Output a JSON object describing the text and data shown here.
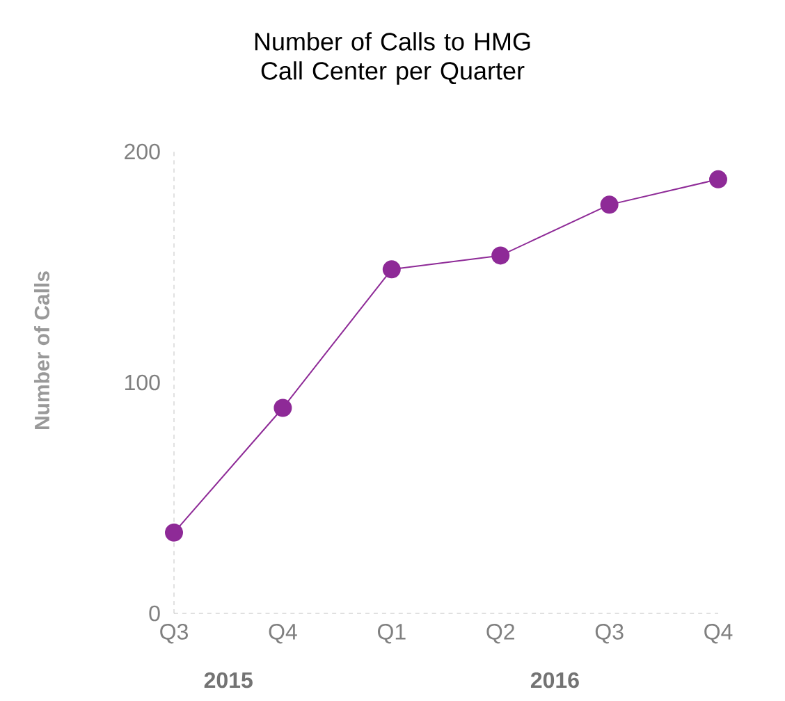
{
  "chart_data": {
    "type": "line",
    "title": "Number of Calls to HMG Call Center per Quarter",
    "ylabel": "Number of Calls",
    "categories": [
      "Q3",
      "Q4",
      "Q1",
      "Q2",
      "Q3",
      "Q4"
    ],
    "series": [
      {
        "color": "#8e2a97",
        "values": [
          35,
          89,
          149,
          155,
          177,
          188
        ]
      }
    ],
    "ylim": [
      0,
      200
    ],
    "yticks": [
      0,
      100,
      200
    ],
    "grid": false,
    "marker": "circle",
    "line_style": "solid",
    "annotations": [
      "2015",
      "2016"
    ]
  }
}
